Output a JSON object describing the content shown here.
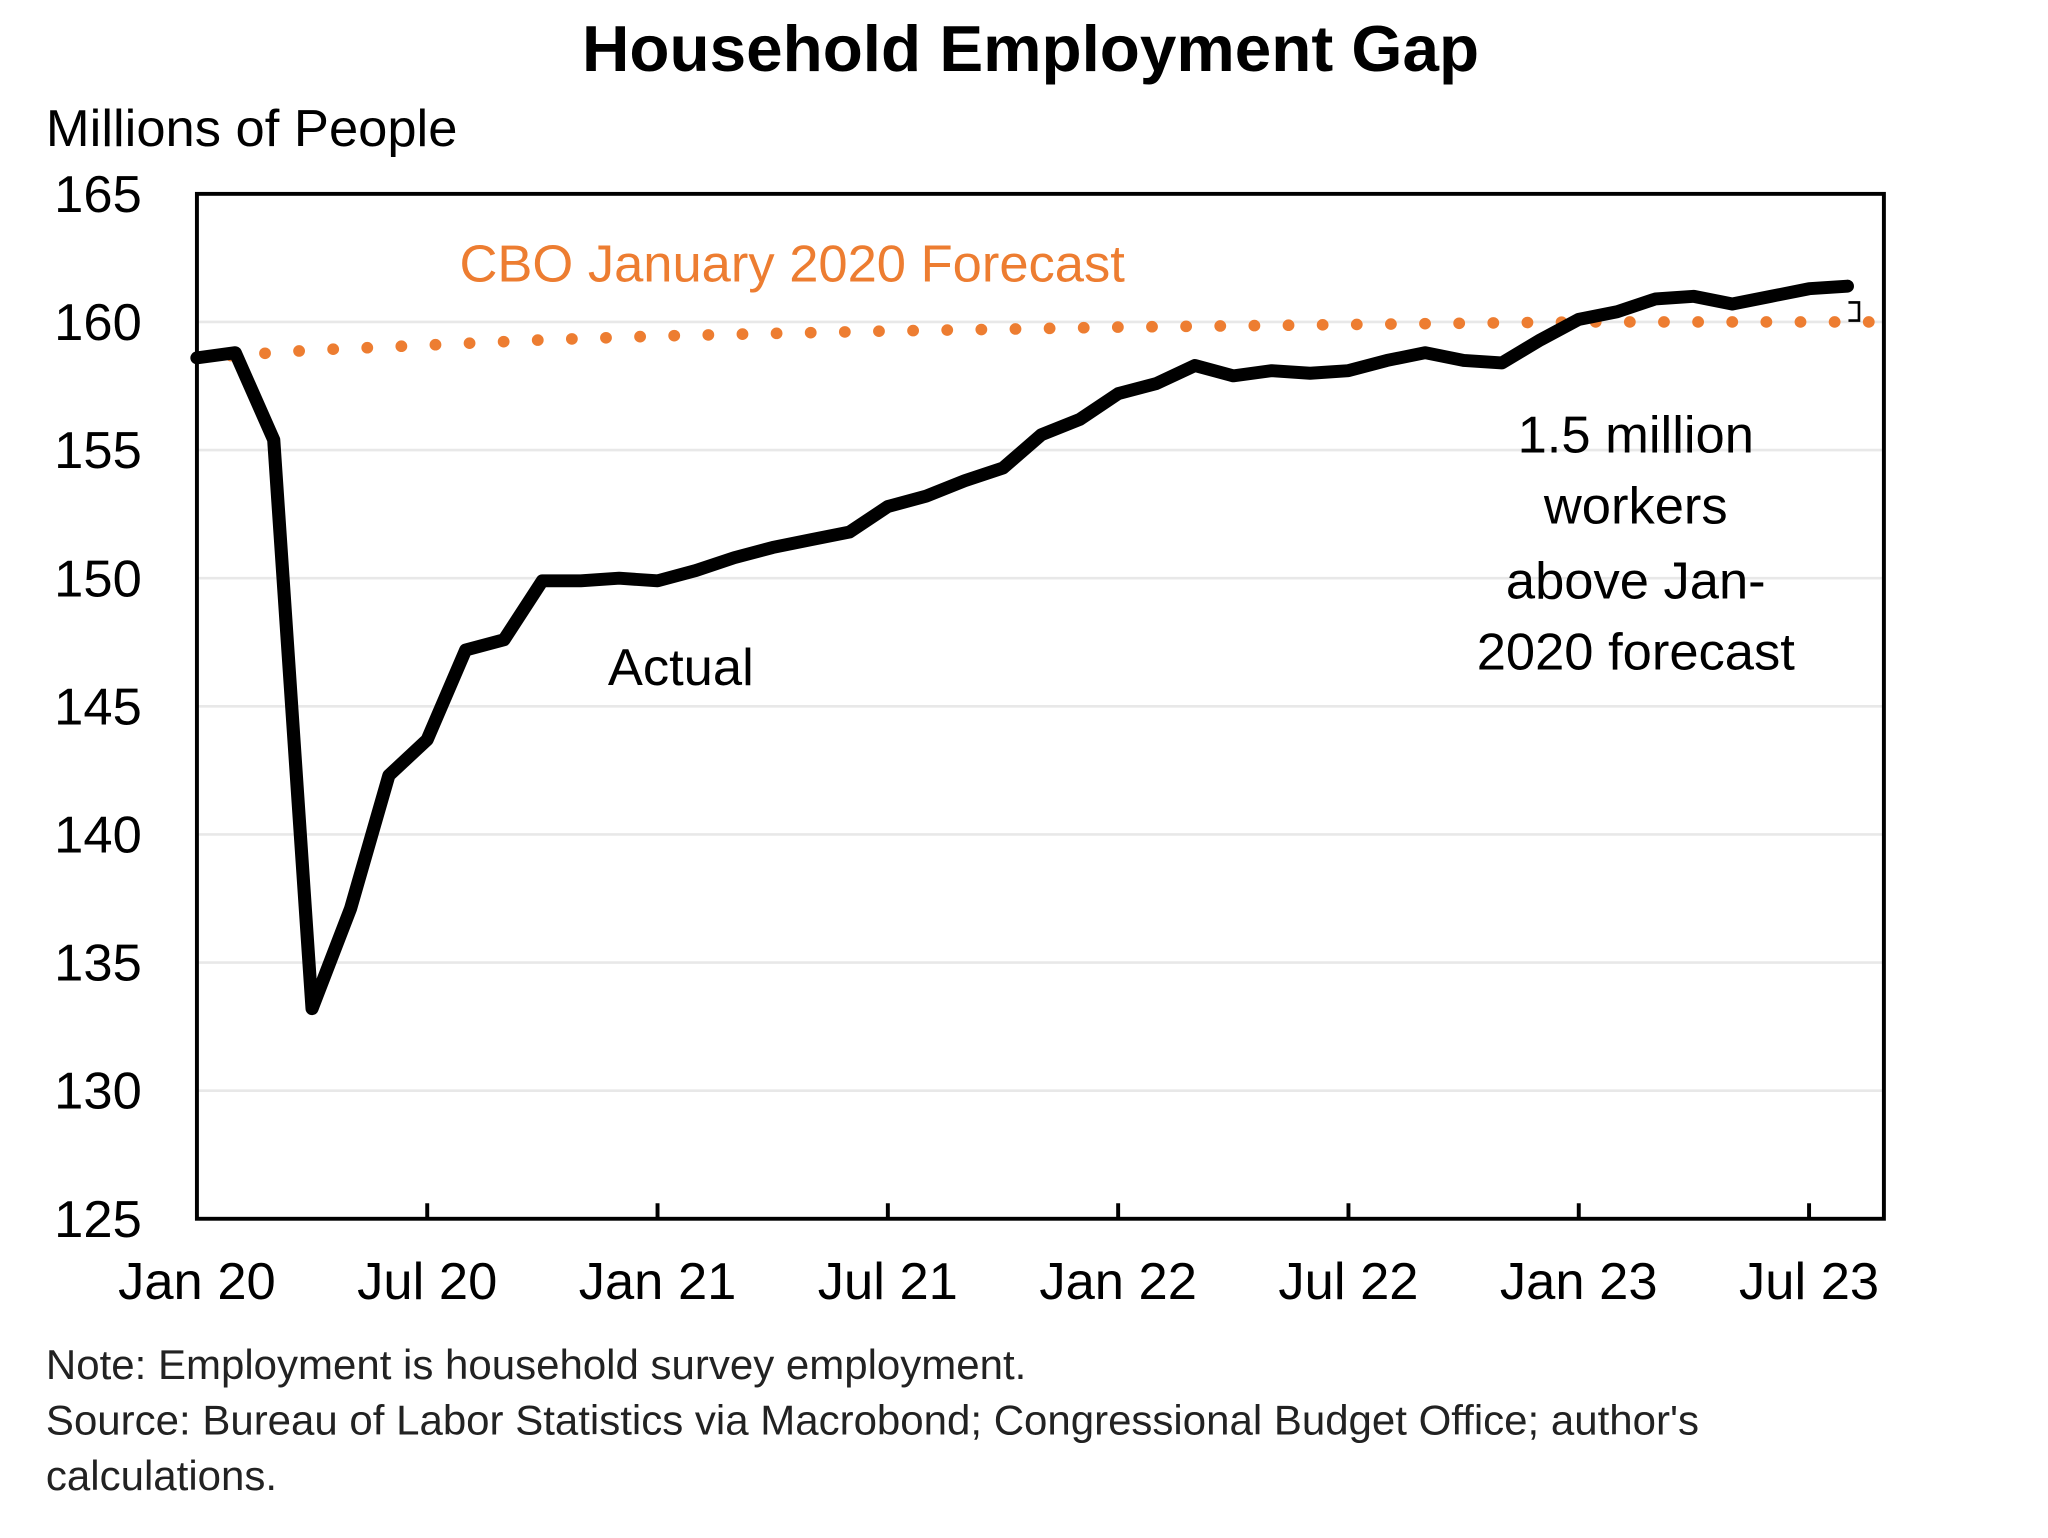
{
  "chart_data": {
    "type": "line",
    "title": "Household Employment Gap",
    "ylabel": "Millions of People",
    "xlabel": "",
    "ylim": [
      125,
      165
    ],
    "yticks": [
      125,
      130,
      135,
      140,
      145,
      150,
      155,
      160,
      165
    ],
    "x_start": "Jan 2020",
    "x_unit": "month",
    "xlim_months": [
      0,
      44
    ],
    "xtick_labels": [
      {
        "label": "Jan 20",
        "month": 0
      },
      {
        "label": "Jul 20",
        "month": 6
      },
      {
        "label": "Jan 21",
        "month": 12
      },
      {
        "label": "Jul 21",
        "month": 18
      },
      {
        "label": "Jan 22",
        "month": 24
      },
      {
        "label": "Jul 22",
        "month": 30
      },
      {
        "label": "Jan 23",
        "month": 36
      },
      {
        "label": "Jul 23",
        "month": 42
      }
    ],
    "grid": true,
    "series": [
      {
        "name": "Actual",
        "color": "#000000",
        "style": "solid",
        "months": [
          0,
          1,
          2,
          3,
          4,
          5,
          6,
          7,
          8,
          9,
          10,
          11,
          12,
          13,
          14,
          15,
          16,
          17,
          18,
          19,
          20,
          21,
          22,
          23,
          24,
          25,
          26,
          27,
          28,
          29,
          30,
          31,
          32,
          33,
          34,
          35,
          36,
          37,
          38,
          39,
          40,
          41,
          42,
          43
        ],
        "values": [
          158.6,
          158.8,
          155.4,
          133.2,
          137.1,
          142.3,
          143.7,
          147.2,
          147.6,
          149.9,
          149.9,
          150.0,
          149.9,
          150.3,
          150.8,
          151.2,
          151.5,
          151.8,
          152.8,
          153.2,
          153.8,
          154.3,
          155.6,
          156.2,
          157.2,
          157.6,
          158.3,
          157.9,
          158.1,
          158.0,
          158.1,
          158.5,
          158.8,
          158.5,
          158.4,
          159.3,
          160.1,
          160.4,
          160.9,
          161.0,
          160.7,
          161.0,
          161.3,
          161.4
        ]
      },
      {
        "name": "CBO January 2020 Forecast",
        "color": "#ED7D31",
        "style": "dotted",
        "months": [
          0,
          3,
          6,
          9,
          12,
          15,
          18,
          21,
          24,
          27,
          30,
          33,
          36,
          39,
          42,
          45
        ],
        "values": [
          158.6,
          158.9,
          159.1,
          159.3,
          159.45,
          159.55,
          159.65,
          159.72,
          159.8,
          159.85,
          159.9,
          159.95,
          160.0,
          160.0,
          160.0,
          160.0
        ]
      }
    ],
    "annotations": {
      "forecast_label": "CBO January 2020 Forecast",
      "actual_label": "Actual",
      "gap_lines": [
        "1.5 million",
        "workers",
        "above Jan-",
        "2020 forecast"
      ]
    },
    "note": "Note:  Employment is household survey employment.",
    "source_lines": [
      "Source: Bureau of Labor Statistics via Macrobond;  Congressional Budget Office; author's",
      "calculations."
    ]
  }
}
